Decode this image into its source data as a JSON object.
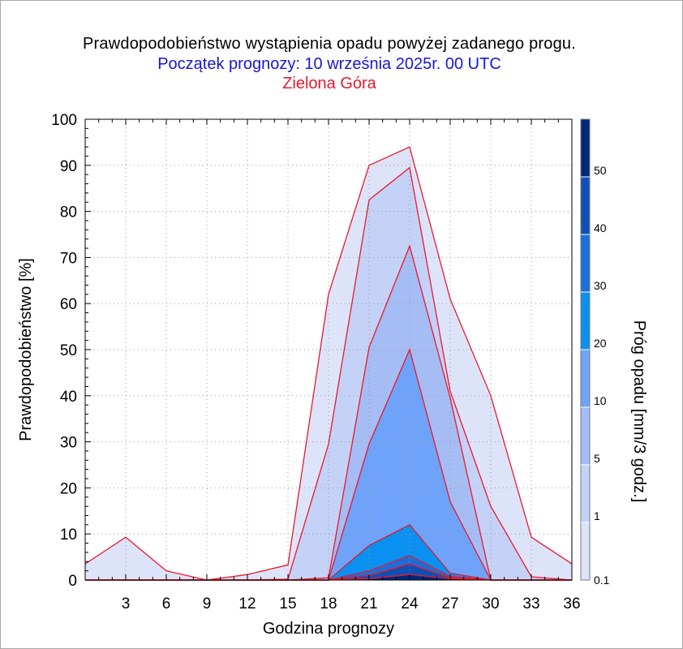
{
  "titles": {
    "main": "Prawdopodobieństwo wystąpienia opadu powyżej zadanego progu.",
    "forecast_start": "Początek prognozy: 10 września 2025r. 00 UTC",
    "location": "Zielona Góra"
  },
  "chart_data": {
    "type": "area",
    "title": "Prawdopodobieństwo wystąpienia opadu powyżej zadanego progu.",
    "subtitle": "Początek prognozy: 10 września 2025r. 00 UTC",
    "location": "Zielona Góra",
    "xlabel": "Godzina prognozy",
    "ylabel": "Prawdopodobieństwo [%]",
    "colorbar_label": "Próg opadu [mm/3 godz.]",
    "xlim": [
      0,
      36
    ],
    "ylim": [
      0,
      100
    ],
    "x_ticks": [
      "3",
      "6",
      "9",
      "12",
      "15",
      "18",
      "21",
      "24",
      "27",
      "30",
      "33",
      "36"
    ],
    "y_ticks": [
      "0",
      "10",
      "20",
      "30",
      "40",
      "50",
      "60",
      "70",
      "80",
      "90",
      "100"
    ],
    "grid": true,
    "x": [
      0,
      3,
      6,
      9,
      12,
      15,
      18,
      21,
      24,
      27,
      30,
      33,
      36
    ],
    "series": [
      {
        "threshold": "0.1",
        "color": "#dde4fa",
        "values": [
          3.5,
          9.3,
          2.0,
          0.0,
          1.2,
          3.3,
          62,
          90,
          94,
          61,
          40,
          9.3,
          3.5
        ]
      },
      {
        "threshold": "1",
        "color": "#c4d2f7",
        "values": [
          0,
          0,
          0,
          0,
          0,
          0.2,
          29.5,
          82.5,
          89.5,
          41,
          16,
          0.7,
          0
        ]
      },
      {
        "threshold": "5",
        "color": "#a6bcf4",
        "values": [
          0,
          0,
          0,
          0,
          0,
          0,
          0.5,
          50.5,
          72.5,
          39.5,
          0,
          0,
          0
        ]
      },
      {
        "threshold": "10",
        "color": "#6fa3f9",
        "values": [
          0,
          0,
          0,
          0,
          0,
          0,
          0,
          29.5,
          50,
          17,
          0,
          0,
          0
        ]
      },
      {
        "threshold": "20",
        "color": "#0a90f0",
        "values": [
          0,
          0,
          0,
          0,
          0,
          0,
          0,
          7.5,
          12,
          1.5,
          0,
          0,
          0
        ]
      },
      {
        "threshold": "30",
        "color": "#1a6fd8",
        "values": [
          0,
          0,
          0,
          0,
          0,
          0,
          0,
          2.0,
          5.3,
          0.8,
          0,
          0,
          0
        ]
      },
      {
        "threshold": "40",
        "color": "#1050b4",
        "values": [
          0,
          0,
          0,
          0,
          0,
          0,
          0,
          1.0,
          3.5,
          0.5,
          0,
          0,
          0
        ]
      },
      {
        "threshold": "50",
        "color": "#00277a",
        "values": [
          0,
          0,
          0,
          0,
          0,
          0,
          0,
          0.3,
          1.2,
          0.3,
          0,
          0,
          0
        ]
      }
    ],
    "outline_color": "#e8192c",
    "colorbar": {
      "labels": [
        "0.1",
        "1",
        "5",
        "10",
        "20",
        "30",
        "40",
        "50"
      ],
      "colors": [
        "#dde4fa",
        "#c4d2f7",
        "#a6bcf4",
        "#6fa3f9",
        "#0a90f0",
        "#1a6fd8",
        "#1050b4",
        "#00277a"
      ]
    }
  }
}
